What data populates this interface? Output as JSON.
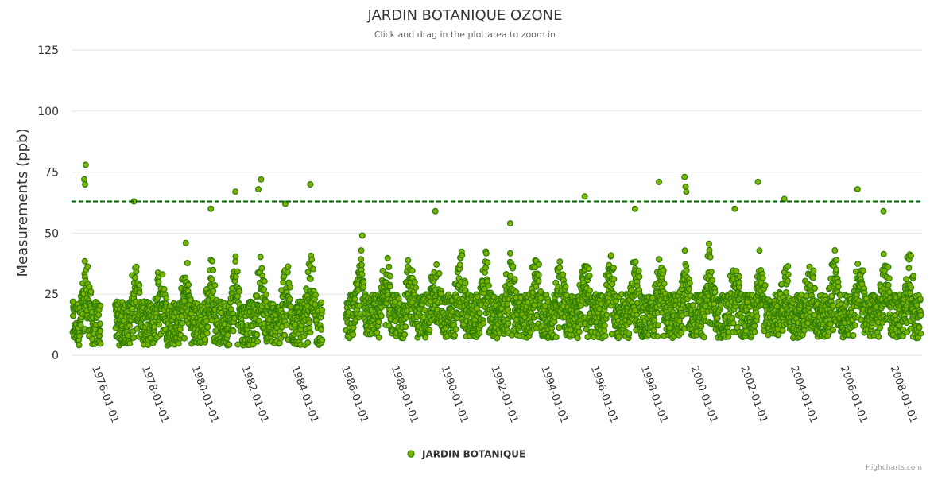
{
  "chart_data": {
    "type": "scatter",
    "title": "JARDIN BOTANIQUE OZONE",
    "subtitle": "Click and drag in the plot area to zoom in",
    "xlabel": "",
    "ylabel": "Measurements (ppb)",
    "ylim": [
      0,
      125
    ],
    "yticks": [
      0,
      25,
      50,
      75,
      100,
      125
    ],
    "xlim": [
      "1974-12-15",
      "2009-01-15"
    ],
    "xticks": [
      "1976-01-01",
      "1978-01-01",
      "1980-01-01",
      "1982-01-01",
      "1984-01-01",
      "1986-01-01",
      "1988-01-01",
      "1990-01-01",
      "1992-01-01",
      "1994-01-01",
      "1996-01-01",
      "1998-01-01",
      "2000-01-01",
      "2002-01-01",
      "2004-01-01",
      "2006-01-01",
      "2008-01-01"
    ],
    "threshold": {
      "value": 63,
      "color": "#006400"
    },
    "legend": {
      "label": "JARDIN BOTANIQUE",
      "position": "bottom-center"
    },
    "marker": {
      "fill": "#7cb200",
      "stroke": "#2e7d0a"
    },
    "data_gaps": [
      [
        "1976-02-15",
        "1976-09-15"
      ],
      [
        "1985-01-01",
        "1985-12-15"
      ]
    ],
    "seasonal_profile": {
      "baseline_ppb": 13,
      "summer_amplitude_ppb": 22,
      "summer_peak_month": 7
    },
    "notable_peaks": [
      {
        "date": "1975-07-10",
        "value": 78
      },
      {
        "date": "1975-06-20",
        "value": 72
      },
      {
        "date": "1975-07-01",
        "value": 70
      },
      {
        "date": "1977-06-15",
        "value": 63
      },
      {
        "date": "1979-07-15",
        "value": 46
      },
      {
        "date": "1980-07-15",
        "value": 60
      },
      {
        "date": "1981-07-10",
        "value": 67
      },
      {
        "date": "1982-06-10",
        "value": 68
      },
      {
        "date": "1982-07-20",
        "value": 72
      },
      {
        "date": "1983-07-10",
        "value": 62
      },
      {
        "date": "1984-07-10",
        "value": 70
      },
      {
        "date": "1986-08-10",
        "value": 49
      },
      {
        "date": "1989-07-15",
        "value": 59
      },
      {
        "date": "1992-07-15",
        "value": 54
      },
      {
        "date": "1995-07-10",
        "value": 65
      },
      {
        "date": "1997-07-15",
        "value": 60
      },
      {
        "date": "1998-07-01",
        "value": 71
      },
      {
        "date": "1999-07-10",
        "value": 73
      },
      {
        "date": "1999-07-25",
        "value": 69
      },
      {
        "date": "1999-08-05",
        "value": 67
      },
      {
        "date": "2001-07-15",
        "value": 60
      },
      {
        "date": "2002-06-20",
        "value": 71
      },
      {
        "date": "2003-07-10",
        "value": 64
      },
      {
        "date": "2006-06-15",
        "value": 68
      },
      {
        "date": "2007-07-01",
        "value": 59
      }
    ]
  },
  "credits": "Highcharts.com"
}
